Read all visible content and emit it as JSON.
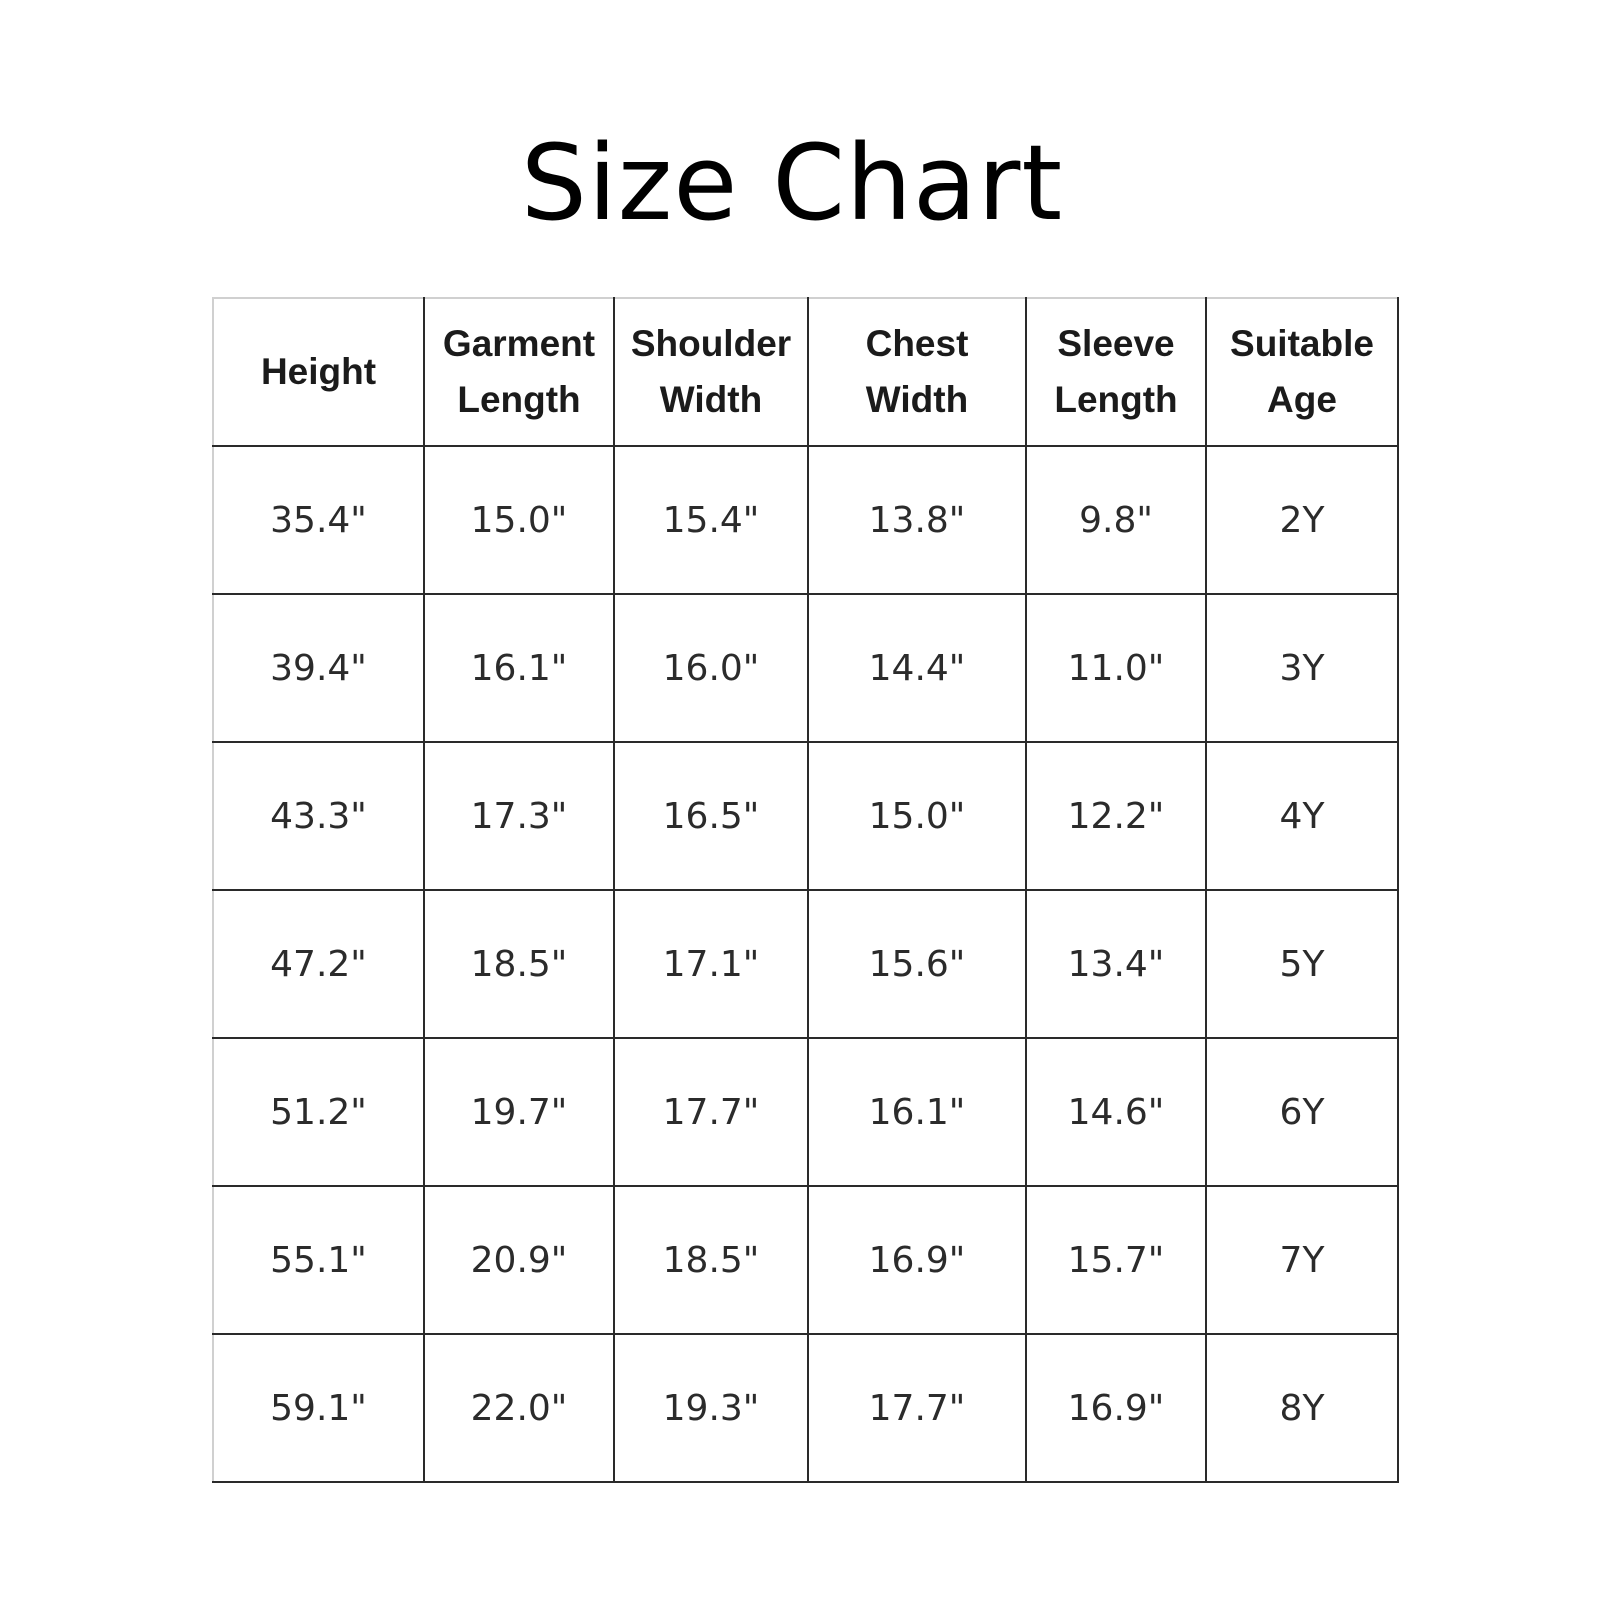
{
  "title": "Size Chart",
  "table": {
    "headers": [
      [
        "Height"
      ],
      [
        "Garment",
        "Length"
      ],
      [
        "Shoulder",
        "Width"
      ],
      [
        "Chest",
        "Width"
      ],
      [
        "Sleeve",
        "Length"
      ],
      [
        "Suitable",
        "Age"
      ]
    ],
    "rows": [
      [
        "35.4\"",
        "15.0\"",
        "15.4\"",
        "13.8\"",
        "9.8\"",
        "2Y"
      ],
      [
        "39.4\"",
        "16.1\"",
        "16.0\"",
        "14.4\"",
        "11.0\"",
        "3Y"
      ],
      [
        "43.3\"",
        "17.3\"",
        "16.5\"",
        "15.0\"",
        "12.2\"",
        "4Y"
      ],
      [
        "47.2\"",
        "18.5\"",
        "17.1\"",
        "15.6\"",
        "13.4\"",
        "5Y"
      ],
      [
        "51.2\"",
        "19.7\"",
        "17.7\"",
        "16.1\"",
        "14.6\"",
        "6Y"
      ],
      [
        "55.1\"",
        "20.9\"",
        "18.5\"",
        "16.9\"",
        "15.7\"",
        "7Y"
      ],
      [
        "59.1\"",
        "22.0\"",
        "19.3\"",
        "17.7\"",
        "16.9\"",
        "8Y"
      ]
    ]
  }
}
